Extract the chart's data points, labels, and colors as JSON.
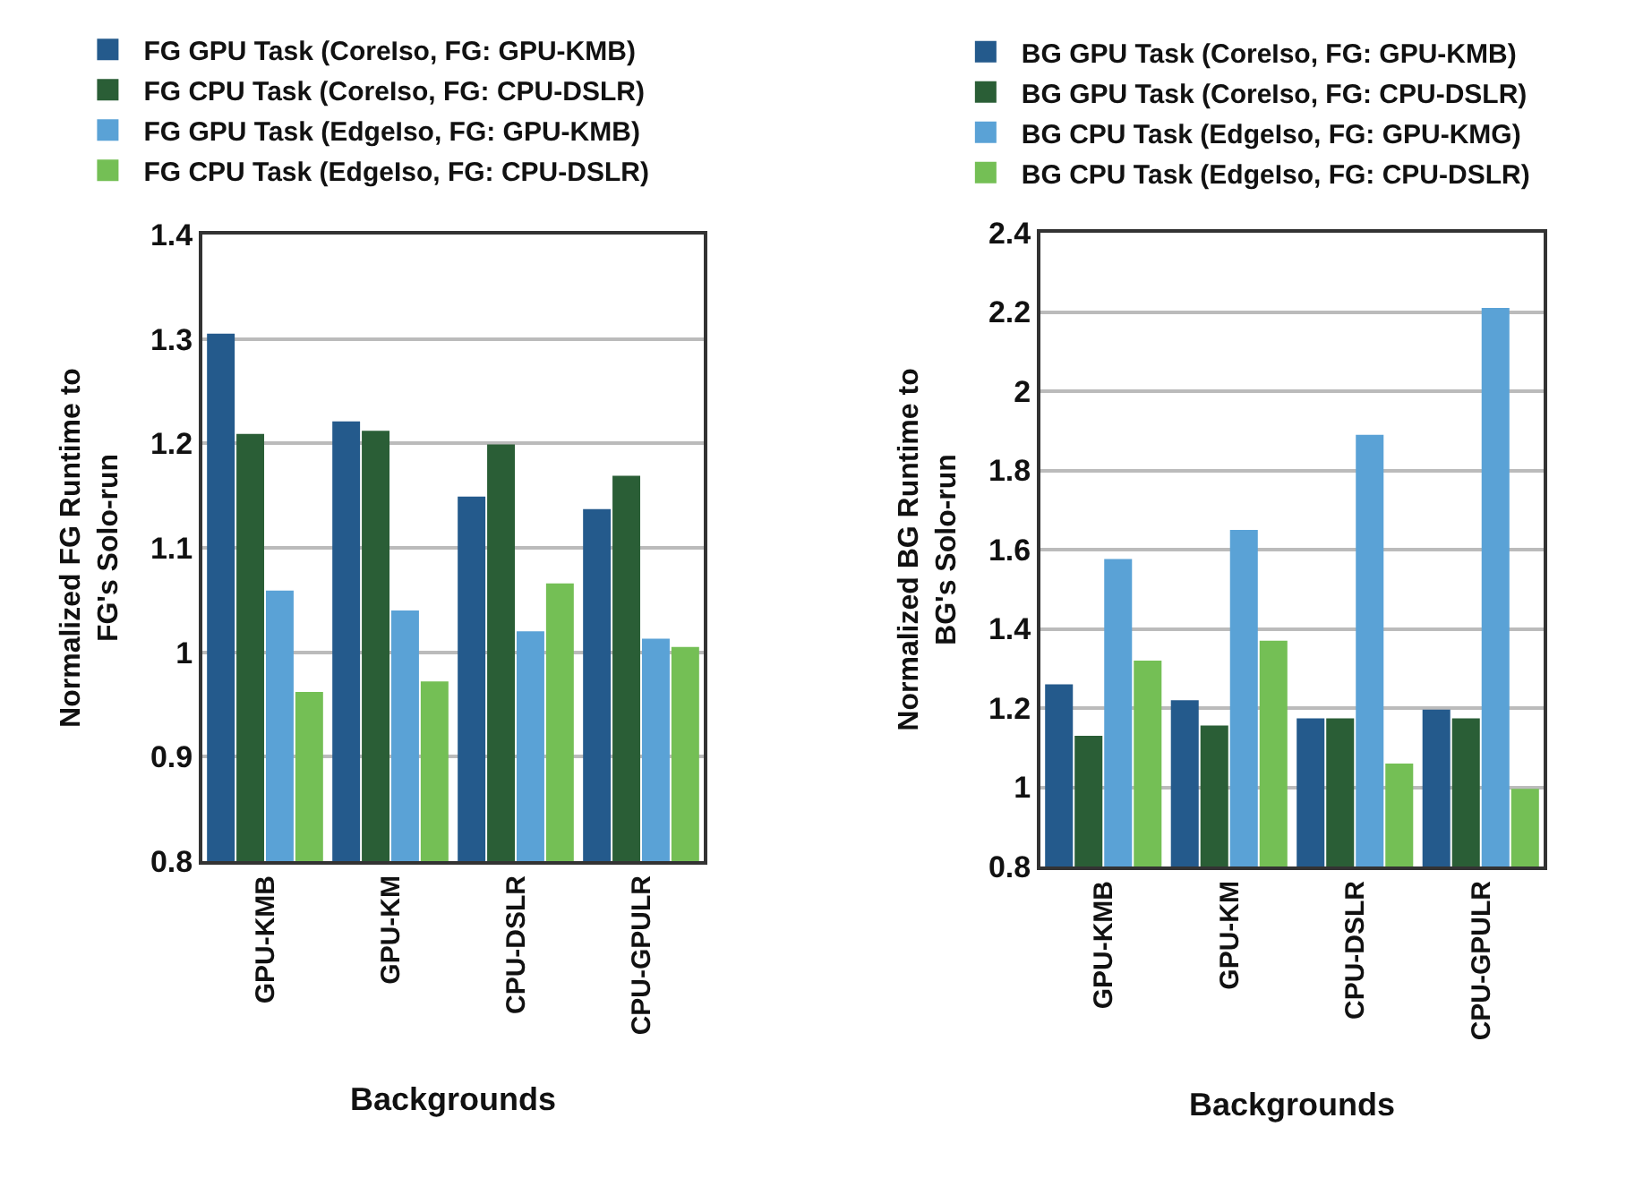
{
  "chart_data": [
    {
      "type": "bar",
      "xlabel": "Backgrounds",
      "ylabel": "Normalized FG Runtime to FG's Solo-run",
      "categories": [
        "GPU-KMB",
        "GPU-KM",
        "CPU-DSLR",
        "CPU-GPULR"
      ],
      "ylim": [
        0.8,
        1.4
      ],
      "yticks": [
        0.8,
        0.9,
        1,
        1.1,
        1.2,
        1.3,
        1.4
      ],
      "grid": "y",
      "legend": "top",
      "series": [
        {
          "name": "FG GPU Task (CoreIso, FG: GPU-KMB)",
          "color": "#245a8c",
          "values": [
            1.305,
            1.221,
            1.149,
            1.137
          ]
        },
        {
          "name": "FG CPU Task (CoreIso, FG: CPU-DSLR)",
          "color": "#2a5e36",
          "values": [
            1.209,
            1.212,
            1.199,
            1.169
          ]
        },
        {
          "name": "FG GPU Task (EdgeIso, FG: GPU-KMB)",
          "color": "#5aa2d6",
          "values": [
            1.059,
            1.04,
            1.02,
            1.013
          ]
        },
        {
          "name": "FG CPU Task (EdgeIso, FG: CPU-DSLR)",
          "color": "#74bf55",
          "values": [
            0.962,
            0.972,
            1.066,
            1.005
          ]
        }
      ]
    },
    {
      "type": "bar",
      "xlabel": "Backgrounds",
      "ylabel": "Normalized BG Runtime to BG's Solo-run",
      "categories": [
        "GPU-KMB",
        "GPU-KM",
        "CPU-DSLR",
        "CPU-GPULR"
      ],
      "ylim": [
        0.8,
        2.4
      ],
      "yticks": [
        0.8,
        1,
        1.2,
        1.4,
        1.6,
        1.8,
        2,
        2.2,
        2.4
      ],
      "grid": "y",
      "legend": "top",
      "series": [
        {
          "name": "BG GPU Task (CoreIso, FG: GPU-KMB)",
          "color": "#245a8c",
          "values": [
            1.26,
            1.22,
            1.174,
            1.196
          ]
        },
        {
          "name": "BG GPU Task (CoreIso, FG: CPU-DSLR)",
          "color": "#2a5e36",
          "values": [
            1.13,
            1.156,
            1.174,
            1.174
          ]
        },
        {
          "name": "BG CPU Task (EdgeIso, FG: GPU-KMG)",
          "color": "#5aa2d6",
          "values": [
            1.576,
            1.65,
            1.89,
            2.21
          ]
        },
        {
          "name": "BG CPU Task (EdgeIso, FG: CPU-DSLR)",
          "color": "#74bf55",
          "values": [
            1.32,
            1.37,
            1.06,
            0.996
          ]
        }
      ]
    }
  ]
}
